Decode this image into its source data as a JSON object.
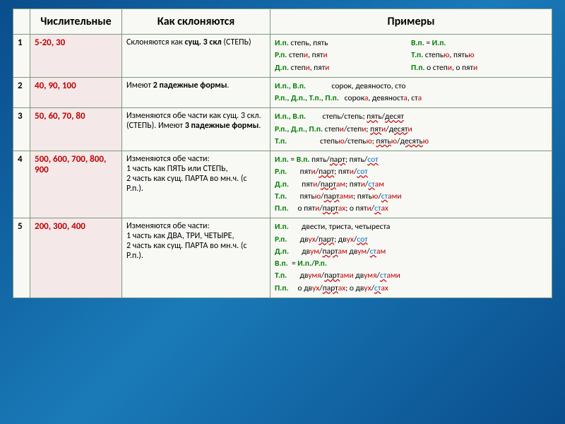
{
  "headers": {
    "num": "",
    "numerals": "Числительные",
    "declension": "Как склоняются",
    "examples": "Примеры"
  },
  "rows": [
    {
      "n": "1",
      "numerals": "5-20, 30",
      "decl_prefix": "Склоняются  как ",
      "decl_bold": "сущ. 3 скл",
      "decl_suffix": " (СТЕПЬ)",
      "ex": {
        "left": [
          {
            "case": "И.п.",
            "parts": [
              {
                "t": " степь, пять",
                "c": "k"
              }
            ]
          },
          {
            "case": "Р.п.",
            "parts": [
              {
                "t": " степ",
                "c": "k"
              },
              {
                "t": "и",
                "c": "r"
              },
              {
                "t": ", пят",
                "c": "k"
              },
              {
                "t": "и",
                "c": "r"
              }
            ]
          },
          {
            "case": "Д.п.",
            "parts": [
              {
                "t": " степ",
                "c": "k"
              },
              {
                "t": "и",
                "c": "r"
              },
              {
                "t": ", пят",
                "c": "k"
              },
              {
                "t": "и",
                "c": "r"
              }
            ]
          }
        ],
        "right": [
          {
            "case": "В.п.",
            "parts": [
              {
                "t": " = ",
                "c": "k"
              },
              {
                "t": "И.п.",
                "c": "g",
                "bold": true
              }
            ]
          },
          {
            "case": "Т.п.",
            "parts": [
              {
                "t": " степь",
                "c": "k"
              },
              {
                "t": "ю",
                "c": "r"
              },
              {
                "t": ", пять",
                "c": "k"
              },
              {
                "t": "ю",
                "c": "r"
              }
            ]
          },
          {
            "case": "П.п.",
            "parts": [
              {
                "t": " о степ",
                "c": "k"
              },
              {
                "t": "и",
                "c": "r"
              },
              {
                "t": ", о пят",
                "c": "k"
              },
              {
                "t": "и",
                "c": "r"
              }
            ]
          }
        ]
      }
    },
    {
      "n": "2",
      "numerals": "40, 90, 100",
      "decl_prefix": "Имеют ",
      "decl_bold": "2 падежные формы",
      "decl_suffix": ".",
      "ex": {
        "lines": [
          {
            "case": "И.п., В.п.",
            "spacer": "              ",
            "parts": [
              {
                "t": "сорок,  девяносто, сто",
                "c": "k"
              }
            ]
          },
          {
            "case": "Р.п., Д.п., Т.п., П.п.",
            "spacer": "   ",
            "parts": [
              {
                "t": "сорок",
                "c": "k"
              },
              {
                "t": "а",
                "c": "r"
              },
              {
                "t": ", девяност",
                "c": "k"
              },
              {
                "t": "а",
                "c": "r"
              },
              {
                "t": ", ст",
                "c": "k"
              },
              {
                "t": "а",
                "c": "r"
              }
            ]
          }
        ]
      }
    },
    {
      "n": "3",
      "numerals": "50, 60, 70, 80",
      "decl_lines": [
        [
          {
            "t": "Изменяются обе части как сущ. 3 скл."
          }
        ],
        [
          {
            "t": "(СТЕПЬ).  Имеют "
          },
          {
            "t": "3 падежные формы",
            "bold": true
          },
          {
            "t": "."
          }
        ]
      ],
      "ex": {
        "lines": [
          {
            "case": "И.п., В.п.",
            "spacer": "         ",
            "parts": [
              {
                "t": "степь/степь;      ",
                "c": "k"
              },
              {
                "t": "пят",
                "c": "k",
                "u": true
              },
              {
                "t": "ь",
                "c": "k"
              },
              {
                "t": "/",
                "c": "k"
              },
              {
                "t": "десят",
                "c": "k",
                "u": true
              }
            ]
          },
          {
            "case": "Р.п., Д.п., П.п.",
            "spacer": " ",
            "parts": [
              {
                "t": "степ",
                "c": "k"
              },
              {
                "t": "и",
                "c": "r"
              },
              {
                "t": "/степ",
                "c": "k"
              },
              {
                "t": "и",
                "c": "r"
              },
              {
                "t": ";     ",
                "c": "k"
              },
              {
                "t": "пят",
                "c": "k",
                "u": true
              },
              {
                "t": "и",
                "c": "r"
              },
              {
                "t": "/",
                "c": "k"
              },
              {
                "t": "десят",
                "c": "k",
                "u": true
              },
              {
                "t": "и",
                "c": "r"
              }
            ]
          },
          {
            "case": "Т.п.",
            "spacer": "                  ",
            "parts": [
              {
                "t": "степь",
                "c": "k"
              },
              {
                "t": "ю",
                "c": "r"
              },
              {
                "t": "/степь",
                "c": "k"
              },
              {
                "t": "ю",
                "c": "r"
              },
              {
                "t": "; ",
                "c": "k"
              },
              {
                "t": "пять",
                "c": "k",
                "u": true
              },
              {
                "t": "ю",
                "c": "r"
              },
              {
                "t": "/",
                "c": "k"
              },
              {
                "t": "десять",
                "c": "k",
                "u": true
              },
              {
                "t": "ю",
                "c": "r"
              }
            ]
          }
        ]
      }
    },
    {
      "n": "4",
      "numerals": "500, 600, 700, 800, 900",
      "decl_lines": [
        [
          {
            "t": "Изменяются обе части:"
          }
        ],
        [
          {
            "t": "1 часть как ПЯТЬ или СТЕПЬ,"
          }
        ],
        [
          {
            "t": "2 часть как сущ. ПАРТА  во мн.ч. (с"
          }
        ],
        [
          {
            "t": "Р.п.)."
          }
        ]
      ],
      "ex": {
        "lines": [
          {
            "case": "И.п.",
            "spacer": " ",
            "parts": [
              {
                "t": "= ",
                "c": "k"
              },
              {
                "t": "В.п.",
                "c": "g",
                "bold": true
              },
              {
                "t": " пять/",
                "c": "k"
              },
              {
                "t": "парт",
                "c": "k",
                "u": true
              },
              {
                "t": ";          пять/",
                "c": "k"
              },
              {
                "t": "сот",
                "c": "b",
                "u": true
              }
            ]
          },
          {
            "case": "Р.п.",
            "spacer": "       ",
            "parts": [
              {
                "t": "пят",
                "c": "k"
              },
              {
                "t": "и",
                "c": "r"
              },
              {
                "t": "/",
                "c": "k"
              },
              {
                "t": "парт",
                "c": "k",
                "u": true
              },
              {
                "t": ";          пят",
                "c": "k"
              },
              {
                "t": "и",
                "c": "r"
              },
              {
                "t": "/",
                "c": "k"
              },
              {
                "t": "сот",
                "c": "b",
                "u": true
              }
            ]
          },
          {
            "case": "Д.п.",
            "spacer": "       ",
            "parts": [
              {
                "t": "пят",
                "c": "k"
              },
              {
                "t": "и",
                "c": "r"
              },
              {
                "t": "/",
                "c": "k"
              },
              {
                "t": "парт",
                "c": "k",
                "u": true
              },
              {
                "t": "ам",
                "c": "r"
              },
              {
                "t": ";        пят",
                "c": "k"
              },
              {
                "t": "и",
                "c": "r"
              },
              {
                "t": "/",
                "c": "k"
              },
              {
                "t": "ст",
                "c": "b",
                "u": true
              },
              {
                "t": "ам",
                "c": "r"
              }
            ]
          },
          {
            "case": "Т.п.",
            "spacer": "       ",
            "parts": [
              {
                "t": "пять",
                "c": "k"
              },
              {
                "t": "ю",
                "c": "r"
              },
              {
                "t": "/",
                "c": "k"
              },
              {
                "t": "парт",
                "c": "k",
                "u": true
              },
              {
                "t": "ами",
                "c": "r"
              },
              {
                "t": ";    пять",
                "c": "k"
              },
              {
                "t": "ю",
                "c": "r"
              },
              {
                "t": "/",
                "c": "k"
              },
              {
                "t": "ст",
                "c": "b",
                "u": true
              },
              {
                "t": "ами",
                "c": "r"
              }
            ]
          },
          {
            "case": "П.п.",
            "spacer": "     ",
            "parts": [
              {
                "t": "о пят",
                "c": "k"
              },
              {
                "t": "и",
                "c": "r"
              },
              {
                "t": "/",
                "c": "k"
              },
              {
                "t": "парт",
                "c": "k",
                "u": true
              },
              {
                "t": "ах",
                "c": "r"
              },
              {
                "t": ";   о пят",
                "c": "k"
              },
              {
                "t": "и",
                "c": "r"
              },
              {
                "t": "/",
                "c": "k"
              },
              {
                "t": "ст",
                "c": "b",
                "u": true
              },
              {
                "t": "ах",
                "c": "r"
              }
            ]
          }
        ]
      }
    },
    {
      "n": "5",
      "numerals": "200, 300, 400",
      "decl_lines": [
        [
          {
            "t": "Изменяются обе части:"
          }
        ],
        [
          {
            "t": "1 часть как ДВА, ТРИ, ЧЕТЫРЕ,"
          }
        ],
        [
          {
            "t": "2 часть как сущ. ПАРТА  во мн.ч. (с"
          }
        ],
        [
          {
            "t": "Р.п.)."
          }
        ]
      ],
      "ex": {
        "lines": [
          {
            "case": "И.п.",
            "spacer": "       ",
            "parts": [
              {
                "t": "двести, триста, четыреста",
                "c": "k"
              }
            ]
          },
          {
            "case": "Р.п.",
            "spacer": "       ",
            "parts": [
              {
                "t": "дв",
                "c": "k"
              },
              {
                "t": "ух",
                "c": "r"
              },
              {
                "t": "/",
                "c": "k"
              },
              {
                "t": "парт",
                "c": "k",
                "u": true
              },
              {
                "t": ";          дв",
                "c": "k"
              },
              {
                "t": "ух",
                "c": "r"
              },
              {
                "t": "/",
                "c": "k"
              },
              {
                "t": "сот",
                "c": "b",
                "u": true
              }
            ]
          },
          {
            "case": "Д.п.",
            "spacer": "       ",
            "parts": [
              {
                "t": "дв",
                "c": "k"
              },
              {
                "t": "ум",
                "c": "r"
              },
              {
                "t": "/",
                "c": "k"
              },
              {
                "t": "парт",
                "c": "k",
                "u": true
              },
              {
                "t": "ам",
                "c": "r"
              },
              {
                "t": "       дв",
                "c": "k"
              },
              {
                "t": "ум",
                "c": "r"
              },
              {
                "t": "/",
                "c": "k"
              },
              {
                "t": "ст",
                "c": "b",
                "u": true
              },
              {
                "t": "ам",
                "c": "r"
              }
            ]
          },
          {
            "case": "В.п.",
            "spacer": "  ",
            "parts": [
              {
                "t": "= ",
                "c": "k"
              },
              {
                "t": "И.п.",
                "c": "g",
                "bold": true
              },
              {
                "t": "/",
                "c": "k"
              },
              {
                "t": "Р.п.",
                "c": "g",
                "bold": true
              }
            ]
          },
          {
            "case": "Т.п.",
            "spacer": "       ",
            "parts": [
              {
                "t": "дв",
                "c": "k"
              },
              {
                "t": "умя",
                "c": "r"
              },
              {
                "t": "/",
                "c": "k"
              },
              {
                "t": "парт",
                "c": "k",
                "u": true
              },
              {
                "t": "ами",
                "c": "r"
              },
              {
                "t": "   дв",
                "c": "k"
              },
              {
                "t": "умя",
                "c": "r"
              },
              {
                "t": "/",
                "c": "k"
              },
              {
                "t": "ст",
                "c": "b",
                "u": true
              },
              {
                "t": "ами",
                "c": "r"
              }
            ]
          },
          {
            "case": "П.п.",
            "spacer": "     ",
            "parts": [
              {
                "t": "о дв",
                "c": "k"
              },
              {
                "t": "ух",
                "c": "r"
              },
              {
                "t": "/",
                "c": "k"
              },
              {
                "t": "парт",
                "c": "k",
                "u": true
              },
              {
                "t": "ах",
                "c": "r"
              },
              {
                "t": ";   о дв",
                "c": "k"
              },
              {
                "t": "ух",
                "c": "r"
              },
              {
                "t": "/",
                "c": "k"
              },
              {
                "t": "ст",
                "c": "b",
                "u": true
              },
              {
                "t": "ах",
                "c": "r"
              }
            ]
          }
        ]
      }
    }
  ]
}
